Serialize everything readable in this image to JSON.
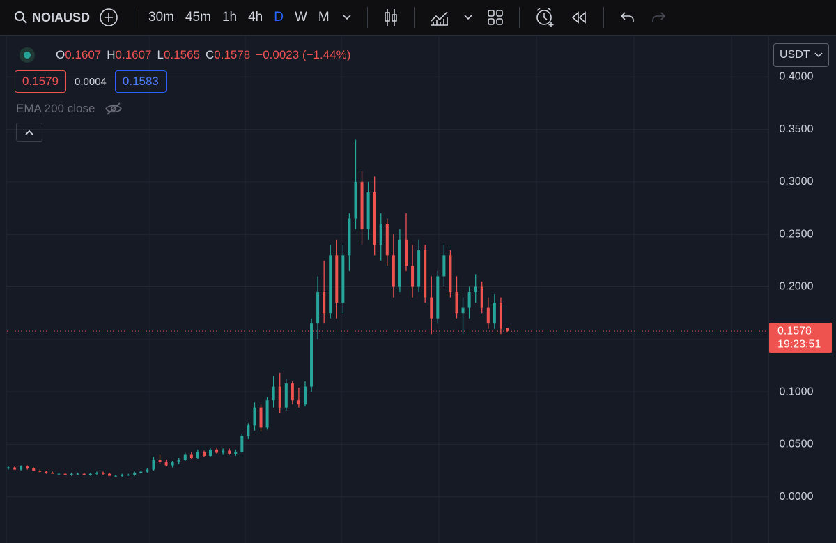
{
  "toolbar": {
    "symbol": "NOIAUSD",
    "intervals": [
      "30m",
      "45m",
      "1h",
      "4h",
      "D",
      "W",
      "M"
    ]
  },
  "legend": {
    "ohlc": [
      {
        "key": "O",
        "value": "0.1607"
      },
      {
        "key": "H",
        "value": "0.1607"
      },
      {
        "key": "L",
        "value": "0.1565"
      },
      {
        "key": "C",
        "value": "0.1578"
      }
    ],
    "change": "−0.0023 (−1.44%)",
    "bid": "0.1579",
    "spread": "0.0004",
    "ask": "0.1583",
    "indicator": "EMA 200 close"
  },
  "chart_data": {
    "type": "candlestick",
    "currency": "USDT",
    "up_color": "#26a69a",
    "down_color": "#ef5350",
    "ylim": [
      -0.044,
      0.4387
    ],
    "yticks": [
      {
        "value": 0.4,
        "label": "0.4000"
      },
      {
        "value": 0.35,
        "label": "0.3500"
      },
      {
        "value": 0.3,
        "label": "0.3000"
      },
      {
        "value": 0.25,
        "label": "0.2500"
      },
      {
        "value": 0.2,
        "label": "0.2000"
      },
      {
        "value": 0.15,
        "label": "0.1500"
      },
      {
        "value": 0.1,
        "label": "0.1000"
      },
      {
        "value": 0.05,
        "label": "0.0500"
      },
      {
        "value": 0,
        "label": "0.0000"
      }
    ],
    "last_price": 0.1578,
    "countdown": "19:23:51",
    "candles": [
      [
        0.027,
        0.029,
        0.026,
        0.028
      ],
      [
        0.028,
        0.029,
        0.026,
        0.026
      ],
      [
        0.026,
        0.03,
        0.025,
        0.029
      ],
      [
        0.029,
        0.03,
        0.026,
        0.027
      ],
      [
        0.027,
        0.028,
        0.025,
        0.025
      ],
      [
        0.025,
        0.026,
        0.023,
        0.024
      ],
      [
        0.024,
        0.025,
        0.022,
        0.023
      ],
      [
        0.023,
        0.024,
        0.022,
        0.022
      ],
      [
        0.022,
        0.023,
        0.021,
        0.022
      ],
      [
        0.022,
        0.023,
        0.021,
        0.021
      ],
      [
        0.021,
        0.023,
        0.02,
        0.022
      ],
      [
        0.022,
        0.023,
        0.021,
        0.022
      ],
      [
        0.022,
        0.023,
        0.021,
        0.021
      ],
      [
        0.021,
        0.023,
        0.02,
        0.022
      ],
      [
        0.022,
        0.024,
        0.021,
        0.023
      ],
      [
        0.023,
        0.024,
        0.021,
        0.022
      ],
      [
        0.022,
        0.023,
        0.02,
        0.02
      ],
      [
        0.02,
        0.021,
        0.019,
        0.02
      ],
      [
        0.02,
        0.022,
        0.019,
        0.021
      ],
      [
        0.021,
        0.022,
        0.02,
        0.021
      ],
      [
        0.021,
        0.024,
        0.02,
        0.023
      ],
      [
        0.023,
        0.025,
        0.022,
        0.024
      ],
      [
        0.024,
        0.027,
        0.023,
        0.026
      ],
      [
        0.026,
        0.038,
        0.025,
        0.035
      ],
      [
        0.035,
        0.04,
        0.032,
        0.033
      ],
      [
        0.033,
        0.035,
        0.029,
        0.03
      ],
      [
        0.03,
        0.034,
        0.028,
        0.033
      ],
      [
        0.033,
        0.037,
        0.031,
        0.035
      ],
      [
        0.035,
        0.042,
        0.034,
        0.04
      ],
      [
        0.04,
        0.043,
        0.036,
        0.037
      ],
      [
        0.037,
        0.045,
        0.036,
        0.043
      ],
      [
        0.043,
        0.044,
        0.038,
        0.039
      ],
      [
        0.039,
        0.046,
        0.038,
        0.045
      ],
      [
        0.045,
        0.047,
        0.041,
        0.042
      ],
      [
        0.042,
        0.046,
        0.04,
        0.044
      ],
      [
        0.044,
        0.046,
        0.04,
        0.041
      ],
      [
        0.041,
        0.045,
        0.039,
        0.043
      ],
      [
        0.043,
        0.06,
        0.042,
        0.058
      ],
      [
        0.058,
        0.07,
        0.055,
        0.068
      ],
      [
        0.068,
        0.09,
        0.063,
        0.085
      ],
      [
        0.085,
        0.088,
        0.062,
        0.066
      ],
      [
        0.066,
        0.095,
        0.064,
        0.092
      ],
      [
        0.092,
        0.115,
        0.085,
        0.105
      ],
      [
        0.105,
        0.118,
        0.08,
        0.085
      ],
      [
        0.085,
        0.112,
        0.082,
        0.108
      ],
      [
        0.108,
        0.11,
        0.088,
        0.092
      ],
      [
        0.092,
        0.104,
        0.085,
        0.088
      ],
      [
        0.088,
        0.11,
        0.086,
        0.105
      ],
      [
        0.105,
        0.17,
        0.1,
        0.165
      ],
      [
        0.165,
        0.21,
        0.15,
        0.195
      ],
      [
        0.195,
        0.225,
        0.165,
        0.175
      ],
      [
        0.175,
        0.24,
        0.17,
        0.23
      ],
      [
        0.23,
        0.245,
        0.17,
        0.185
      ],
      [
        0.185,
        0.24,
        0.175,
        0.23
      ],
      [
        0.23,
        0.27,
        0.215,
        0.265
      ],
      [
        0.265,
        0.34,
        0.255,
        0.3
      ],
      [
        0.3,
        0.31,
        0.24,
        0.255
      ],
      [
        0.255,
        0.3,
        0.245,
        0.29
      ],
      [
        0.29,
        0.305,
        0.23,
        0.24
      ],
      [
        0.24,
        0.27,
        0.225,
        0.26
      ],
      [
        0.26,
        0.265,
        0.22,
        0.23
      ],
      [
        0.23,
        0.25,
        0.19,
        0.2
      ],
      [
        0.2,
        0.255,
        0.195,
        0.245
      ],
      [
        0.245,
        0.27,
        0.215,
        0.22
      ],
      [
        0.22,
        0.24,
        0.19,
        0.2
      ],
      [
        0.2,
        0.245,
        0.195,
        0.235
      ],
      [
        0.235,
        0.24,
        0.185,
        0.19
      ],
      [
        0.19,
        0.21,
        0.155,
        0.17
      ],
      [
        0.17,
        0.215,
        0.165,
        0.21
      ],
      [
        0.21,
        0.24,
        0.2,
        0.23
      ],
      [
        0.23,
        0.235,
        0.19,
        0.195
      ],
      [
        0.195,
        0.21,
        0.17,
        0.175
      ],
      [
        0.175,
        0.19,
        0.155,
        0.18
      ],
      [
        0.18,
        0.2,
        0.17,
        0.195
      ],
      [
        0.195,
        0.212,
        0.185,
        0.2
      ],
      [
        0.2,
        0.205,
        0.175,
        0.18
      ],
      [
        0.18,
        0.19,
        0.16,
        0.165
      ],
      [
        0.165,
        0.193,
        0.16,
        0.185
      ],
      [
        0.185,
        0.19,
        0.155,
        0.16
      ],
      [
        0.1607,
        0.1607,
        0.1565,
        0.1578
      ]
    ]
  }
}
